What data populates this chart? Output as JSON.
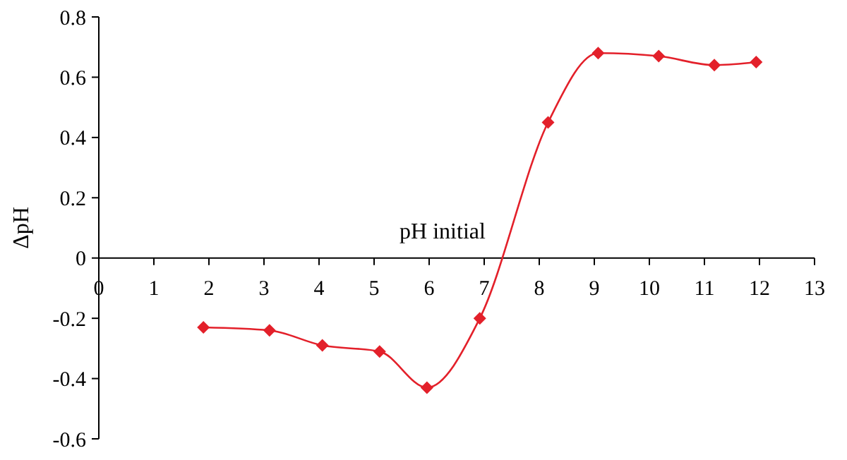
{
  "chart_data": {
    "type": "line",
    "xlabel": "pH initial",
    "ylabel": "ΔpH",
    "x": [
      1.9,
      3.1,
      4.06,
      5.1,
      5.96,
      6.92,
      8.16,
      9.07,
      10.17,
      11.18,
      11.94
    ],
    "series": [
      {
        "color": "#e3202a",
        "values": [
          -0.23,
          -0.24,
          -0.29,
          -0.31,
          -0.43,
          -0.2,
          0.45,
          0.68,
          0.67,
          0.64,
          0.65
        ]
      }
    ],
    "xlim": [
      0,
      13
    ],
    "xticks": [
      0,
      1,
      2,
      3,
      4,
      5,
      6,
      7,
      8,
      9,
      10,
      11,
      12,
      13
    ],
    "ylim": [
      -0.6,
      0.8
    ],
    "yticks": [
      -0.6,
      -0.4,
      -0.2,
      0,
      0.2,
      0.4,
      0.6,
      0.8
    ],
    "marker": "diamond",
    "line_style": "solid",
    "grid": false
  }
}
